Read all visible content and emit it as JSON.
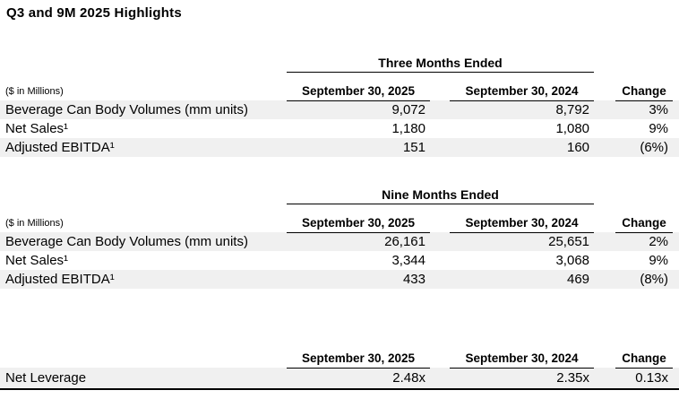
{
  "title": "Q3 and 9M 2025 Highlights",
  "colors": {
    "stripe": "#f0f0f0",
    "rule": "#000000",
    "text": "#000000",
    "background": "#ffffff"
  },
  "tables": [
    {
      "period": "Three Months Ended",
      "unit_note": "($ in Millions)",
      "col_2025": "September 30, 2025",
      "col_2024": "September 30, 2024",
      "col_change": "Change",
      "rows": [
        {
          "label": "Beverage Can Body Volumes (mm units)",
          "v2025": "9,072",
          "v2024": "8,792",
          "change": "3%"
        },
        {
          "label": "Net Sales¹",
          "v2025": "1,180",
          "v2024": "1,080",
          "change": "9%"
        },
        {
          "label": "Adjusted EBITDA¹",
          "v2025": "151",
          "v2024": "160",
          "change": "(6%)"
        }
      ]
    },
    {
      "period": "Nine Months Ended",
      "unit_note": "($ in Millions)",
      "col_2025": "September 30, 2025",
      "col_2024": "September 30, 2024",
      "col_change": "Change",
      "rows": [
        {
          "label": "Beverage Can Body Volumes (mm units)",
          "v2025": "26,161",
          "v2024": "25,651",
          "change": "2%"
        },
        {
          "label": "Net Sales¹",
          "v2025": "3,344",
          "v2024": "3,068",
          "change": "9%"
        },
        {
          "label": "Adjusted EBITDA¹",
          "v2025": "433",
          "v2024": "469",
          "change": "(8%)"
        }
      ]
    },
    {
      "col_2025": "September 30, 2025",
      "col_2024": "September 30, 2024",
      "col_change": "Change",
      "rows": [
        {
          "label": "Net Leverage",
          "v2025": "2.48x",
          "v2024": "2.35x",
          "change": "0.13x"
        }
      ]
    }
  ]
}
